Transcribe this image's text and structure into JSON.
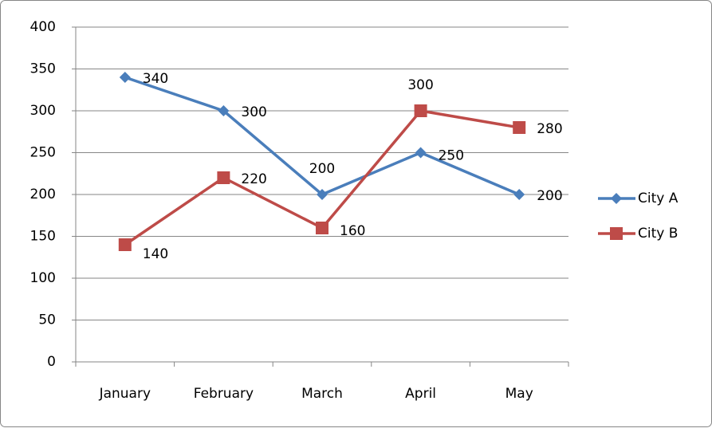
{
  "chart_data": {
    "type": "line",
    "categories": [
      "January",
      "February",
      "March",
      "April",
      "May"
    ],
    "series": [
      {
        "name": "City A",
        "color": "#4a7ebb",
        "marker": "diamond",
        "values": [
          340,
          300,
          200,
          250,
          200
        ]
      },
      {
        "name": "City B",
        "color": "#be4b48",
        "marker": "square",
        "values": [
          140,
          220,
          160,
          300,
          280
        ]
      }
    ],
    "ylim": [
      0,
      400
    ],
    "yticks": [
      0,
      50,
      100,
      150,
      200,
      250,
      300,
      350,
      400
    ],
    "grid": true,
    "legend": "right"
  }
}
